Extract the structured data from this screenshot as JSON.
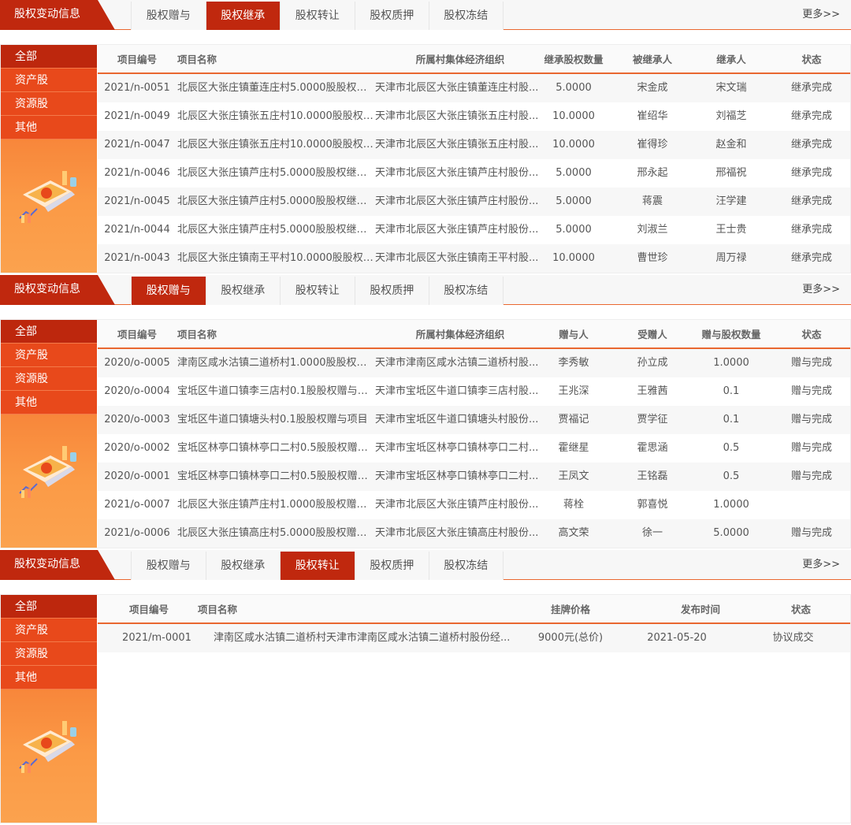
{
  "colors": {
    "primary": "#c0280e",
    "accent": "#e8491b",
    "line": "#e9672f"
  },
  "sections": [
    {
      "title": "股权变动信息",
      "tabs": [
        "股权赠与",
        "股权继承",
        "股权转让",
        "股权质押",
        "股权冻结"
      ],
      "active_tab": 1,
      "more": "更多>>",
      "side": [
        "全部",
        "资产股",
        "资源股",
        "其他"
      ],
      "headers": [
        "项目编号",
        "项目名称",
        "所属村集体经济组织",
        "继承股权数量",
        "被继承人",
        "继承人",
        "状态"
      ],
      "rows": [
        [
          "2021/n-0051",
          "北辰区大张庄镇董连庄村5.0000股股权继...",
          "天津市北辰区大张庄镇董连庄村股...",
          "5.0000",
          "宋金成",
          "宋文瑞",
          "继承完成"
        ],
        [
          "2021/n-0049",
          "北辰区大张庄镇张五庄村10.0000股股权继...",
          "天津市北辰区大张庄镇张五庄村股...",
          "10.0000",
          "崔绍华",
          "刘福芝",
          "继承完成"
        ],
        [
          "2021/n-0047",
          "北辰区大张庄镇张五庄村10.0000股股权继...",
          "天津市北辰区大张庄镇张五庄村股...",
          "10.0000",
          "崔得珍",
          "赵金和",
          "继承完成"
        ],
        [
          "2021/n-0046",
          "北辰区大张庄镇芦庄村5.0000股股权继承...",
          "天津市北辰区大张庄镇芦庄村股份...",
          "5.0000",
          "邢永起",
          "邢福祝",
          "继承完成"
        ],
        [
          "2021/n-0045",
          "北辰区大张庄镇芦庄村5.0000股股权继承...",
          "天津市北辰区大张庄镇芦庄村股份...",
          "5.0000",
          "蒋震",
          "汪学建",
          "继承完成"
        ],
        [
          "2021/n-0044",
          "北辰区大张庄镇芦庄村5.0000股股权继承...",
          "天津市北辰区大张庄镇芦庄村股份...",
          "5.0000",
          "刘淑兰",
          "王士贵",
          "继承完成"
        ],
        [
          "2021/n-0043",
          "北辰区大张庄镇南王平村10.0000股股权继...",
          "天津市北辰区大张庄镇南王平村股...",
          "10.0000",
          "曹世珍",
          "周万禄",
          "继承完成"
        ]
      ]
    },
    {
      "title": "股权变动信息",
      "tabs": [
        "股权赠与",
        "股权继承",
        "股权转让",
        "股权质押",
        "股权冻结"
      ],
      "active_tab": 0,
      "more": "更多>>",
      "side": [
        "全部",
        "资产股",
        "资源股",
        "其他"
      ],
      "headers": [
        "项目编号",
        "项目名称",
        "所属村集体经济组织",
        "赠与人",
        "受赠人",
        "赠与股权数量",
        "状态"
      ],
      "rows": [
        [
          "2020/o-0005",
          "津南区咸水沽镇二道桥村1.0000股股权赠...",
          "天津市津南区咸水沽镇二道桥村股...",
          "李秀敏",
          "孙立成",
          "1.0000",
          "赠与完成"
        ],
        [
          "2020/o-0004",
          "宝坻区牛道口镇李三店村0.1股股权赠与项目",
          "天津市宝坻区牛道口镇李三店村股...",
          "王兆深",
          "王雅茜",
          "0.1",
          "赠与完成"
        ],
        [
          "2020/o-0003",
          "宝坻区牛道口镇塘头村0.1股股权赠与项目",
          "天津市宝坻区牛道口镇塘头村股份...",
          "贾福记",
          "贾学征",
          "0.1",
          "赠与完成"
        ],
        [
          "2020/o-0002",
          "宝坻区林亭口镇林亭口二村0.5股股权赠与...",
          "天津市宝坻区林亭口镇林亭口二村...",
          "霍继星",
          "霍思涵",
          "0.5",
          "赠与完成"
        ],
        [
          "2020/o-0001",
          "宝坻区林亭口镇林亭口二村0.5股股权赠与...",
          "天津市宝坻区林亭口镇林亭口二村...",
          "王凤文",
          "王铭磊",
          "0.5",
          "赠与完成"
        ],
        [
          "2021/o-0007",
          "北辰区大张庄镇芦庄村1.0000股股权赠与...",
          "天津市北辰区大张庄镇芦庄村股份...",
          "蒋栓",
          "郭喜悦",
          "1.0000",
          ""
        ],
        [
          "2021/o-0006",
          "北辰区大张庄镇高庄村5.0000股股权赠与...",
          "天津市北辰区大张庄镇高庄村股份...",
          "高文荣",
          "徐一",
          "5.0000",
          "赠与完成"
        ]
      ]
    },
    {
      "title": "股权变动信息",
      "tabs": [
        "股权赠与",
        "股权继承",
        "股权转让",
        "股权质押",
        "股权冻结"
      ],
      "active_tab": 2,
      "more": "更多>>",
      "side": [
        "全部",
        "资产股",
        "资源股",
        "其他"
      ],
      "headers": [
        "项目编号",
        "项目名称",
        "挂牌价格",
        "发布时间",
        "状态"
      ],
      "rows": [
        [
          "2021/m-0001",
          "津南区咸水沽镇二道桥村天津市津南区咸水沽镇二道桥村股份经...",
          "9000元(总价)",
          "2021-05-20",
          "协议成交"
        ]
      ]
    }
  ]
}
